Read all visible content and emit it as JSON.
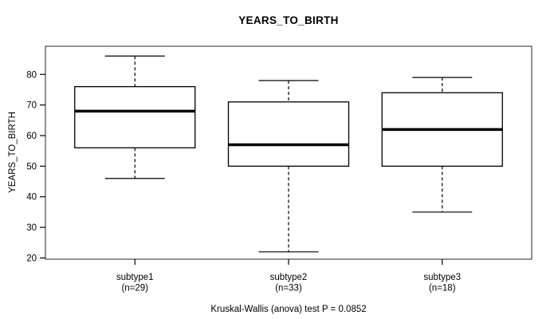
{
  "chart_data": {
    "type": "boxplot",
    "title": "YEARS_TO_BIRTH",
    "ylabel": "YEARS_TO_BIRTH",
    "caption": "Kruskal-Wallis (anova) test P = 0.0852",
    "ylim": [
      19.6,
      89.2
    ],
    "yticks": [
      20,
      30,
      40,
      50,
      60,
      70,
      80
    ],
    "grid": false,
    "groups": [
      {
        "label": "subtype1",
        "sublabel": "(n=29)",
        "n": 29,
        "whisker_low": 46,
        "q1": 56,
        "median": 68,
        "q3": 76,
        "whisker_high": 86
      },
      {
        "label": "subtype2",
        "sublabel": "(n=33)",
        "n": 33,
        "whisker_low": 22,
        "q1": 50,
        "median": 57,
        "q3": 71,
        "whisker_high": 78
      },
      {
        "label": "subtype3",
        "sublabel": "(n=18)",
        "n": 18,
        "whisker_low": 35,
        "q1": 50,
        "median": 62,
        "q3": 74,
        "whisker_high": 79
      }
    ],
    "colors": {
      "frame": "#4a4a4a",
      "box_border": "#000000",
      "box_fill": "#ffffff",
      "median": "#000000",
      "whisker": "#000000",
      "text": "#000000",
      "background": "#ffffff"
    }
  }
}
